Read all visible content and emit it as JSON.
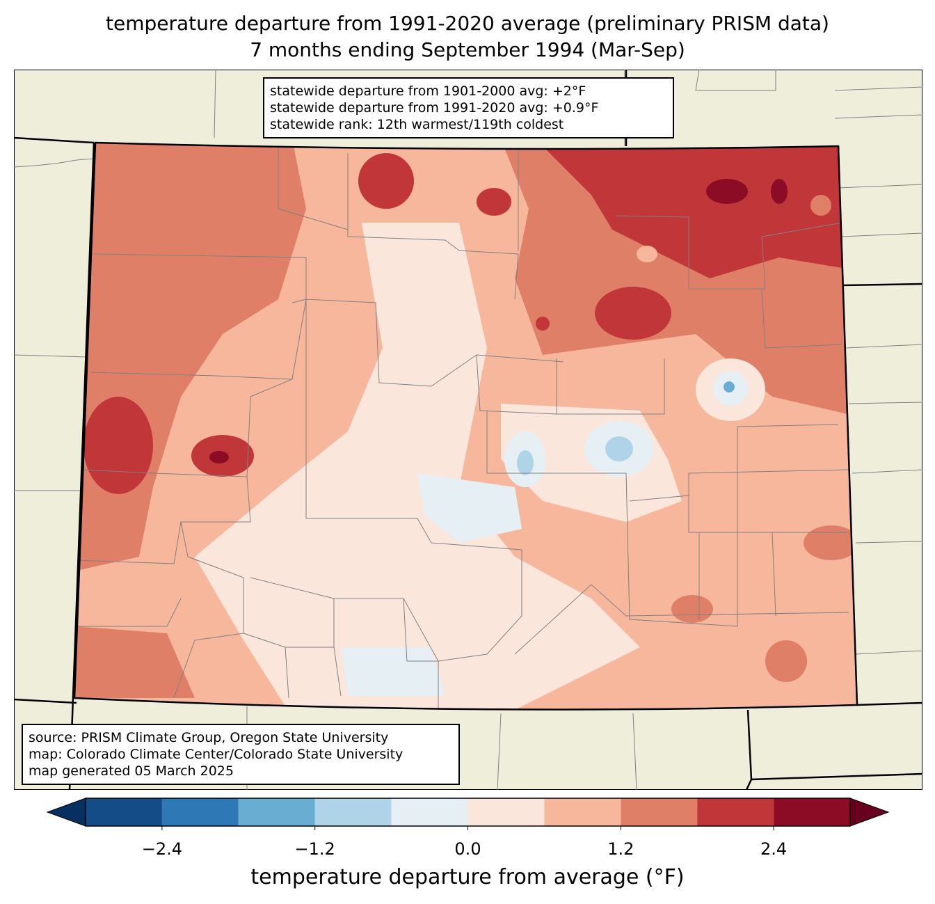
{
  "title": {
    "line1": "temperature departure from 1991-2020 average (preliminary PRISM data)",
    "line2": "7 months ending September 1994 (Mar-Sep)"
  },
  "info_box": {
    "line1": "statewide departure from 1901-2000 avg: +2°F",
    "line2": "statewide departure from 1991-2020 avg: +0.9°F",
    "line3": "statewide rank: 12th warmest/119th coldest"
  },
  "source_box": {
    "line1": "source: PRISM Climate Group, Oregon State University",
    "line2": "map: Colorado Climate Center/Colorado State University",
    "line3": "map generated 05 March 2025"
  },
  "colorbar": {
    "label": "temperature departure from average (°F)",
    "bounds": [
      -3.0,
      -2.4,
      -1.8,
      -1.2,
      -0.6,
      0.0,
      0.6,
      1.2,
      1.8,
      2.4,
      3.0
    ],
    "colors": [
      "#134c87",
      "#2e79b5",
      "#6aadd3",
      "#b0d4e7",
      "#e6eff4",
      "#fbe6dc",
      "#f6b79c",
      "#e07f68",
      "#c13639",
      "#8b0c24"
    ],
    "extend_low_color": "#053061",
    "extend_high_color": "#67001f",
    "ticks": [
      "−2.4",
      "−1.2",
      "0.0",
      "1.2",
      "2.4"
    ],
    "tick_values": [
      -2.4,
      -1.2,
      0.0,
      1.2,
      2.4
    ]
  },
  "map_colors": {
    "land_background": "#efeedb",
    "county_lines": "#808080"
  }
}
